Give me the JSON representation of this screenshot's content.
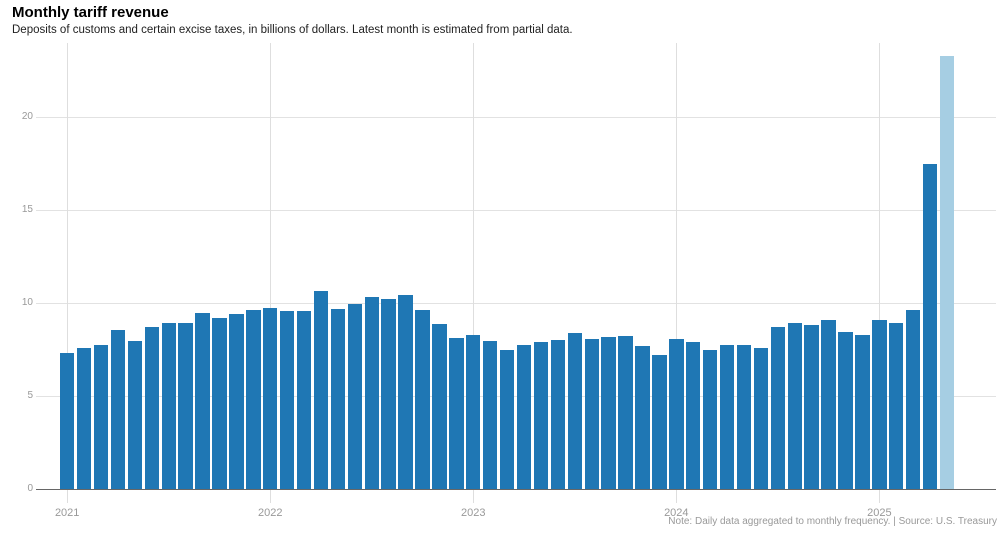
{
  "header": {
    "title": "Monthly tariff revenue",
    "subtitle": "Deposits of customs and certain excise taxes, in billions of dollars. Latest month is estimated from partial data."
  },
  "footer": {
    "note": "Note: Daily data aggregated to monthly frequency. | Source: U.S. Treasury"
  },
  "colors": {
    "bar": "#1f77b4",
    "bar_estimated": "#a6cee3",
    "hgrid": "#e2e2e2",
    "vgrid": "#dedede",
    "axis_line": "#666666",
    "tick_label": "#999999"
  },
  "chart_data": {
    "type": "bar",
    "title": "Monthly tariff revenue",
    "subtitle": "Deposits of customs and certain excise taxes, in billions of dollars. Latest month is estimated from partial data.",
    "ylabel": "Billions of dollars",
    "xlabel": "",
    "ylim": [
      0,
      23.5
    ],
    "yticks": [
      0,
      5,
      10,
      15,
      20
    ],
    "grid": true,
    "legend_position": "none",
    "year_ticks": [
      "2021",
      "2022",
      "2023",
      "2024",
      "2025"
    ],
    "categories": [
      "Jan 2021",
      "Feb 2021",
      "Mar 2021",
      "Apr 2021",
      "May 2021",
      "Jun 2021",
      "Jul 2021",
      "Aug 2021",
      "Sep 2021",
      "Oct 2021",
      "Nov 2021",
      "Dec 2021",
      "Jan 2022",
      "Feb 2022",
      "Mar 2022",
      "Apr 2022",
      "May 2022",
      "Jun 2022",
      "Jul 2022",
      "Aug 2022",
      "Sep 2022",
      "Oct 2022",
      "Nov 2022",
      "Dec 2022",
      "Jan 2023",
      "Feb 2023",
      "Mar 2023",
      "Apr 2023",
      "May 2023",
      "Jun 2023",
      "Jul 2023",
      "Aug 2023",
      "Sep 2023",
      "Oct 2023",
      "Nov 2023",
      "Dec 2023",
      "Jan 2024",
      "Feb 2024",
      "Mar 2024",
      "Apr 2024",
      "May 2024",
      "Jun 2024",
      "Jul 2024",
      "Aug 2024",
      "Sep 2024",
      "Oct 2024",
      "Nov 2024",
      "Dec 2024",
      "Jan 2025",
      "Feb 2025",
      "Mar 2025",
      "Apr 2025",
      "May 2025"
    ],
    "values": [
      7.3,
      7.6,
      7.75,
      8.55,
      7.95,
      8.7,
      8.95,
      8.9,
      9.45,
      9.2,
      9.4,
      9.6,
      9.75,
      9.55,
      9.55,
      10.65,
      9.7,
      9.95,
      10.3,
      10.2,
      10.45,
      9.65,
      8.85,
      8.1,
      8.3,
      7.95,
      7.5,
      7.75,
      7.9,
      8.0,
      8.4,
      8.05,
      8.15,
      8.2,
      7.7,
      7.2,
      8.05,
      7.9,
      7.5,
      7.75,
      7.75,
      7.6,
      8.7,
      8.95,
      8.8,
      9.1,
      8.45,
      8.3,
      9.1,
      8.95,
      9.65,
      17.5,
      23.3
    ],
    "estimated_mask_last": true
  }
}
